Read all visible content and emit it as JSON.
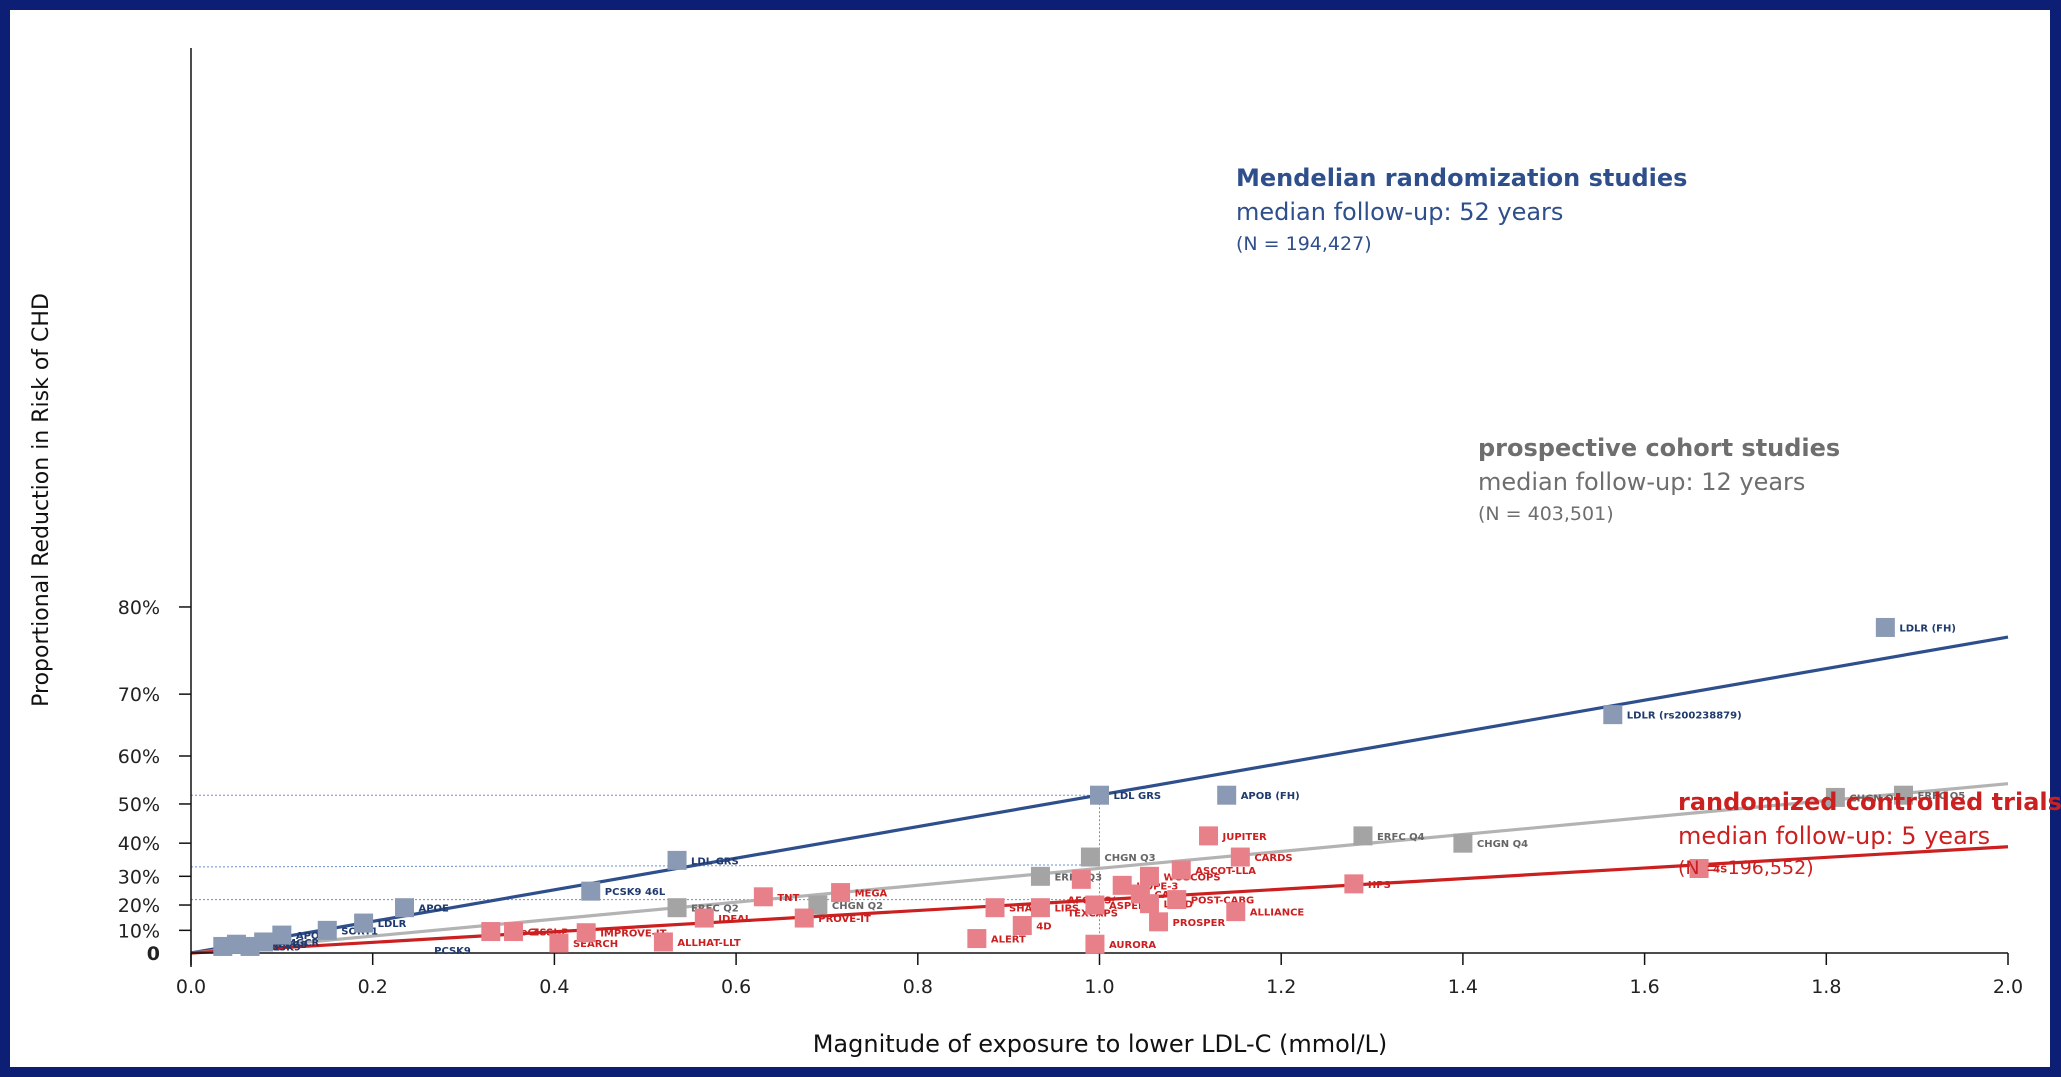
{
  "chart_data": {
    "type": "scatter",
    "title": "",
    "xlabel": "Magnitude of exposure to lower LDL-C (mmol/L)",
    "ylabel": "Proportional Reduction in Risk of CHD",
    "xlim": [
      0,
      2.0
    ],
    "x_ticks": [
      "0.0",
      "0.2",
      "0.4",
      "0.6",
      "0.8",
      "1.0",
      "1.2",
      "1.4",
      "1.6",
      "1.8",
      "2.0"
    ],
    "y_ticks": [
      {
        "value": 0,
        "label": "0"
      },
      {
        "value": 10,
        "label": "10%"
      },
      {
        "value": 20,
        "label": "20%"
      },
      {
        "value": 30,
        "label": "30%"
      },
      {
        "value": 40,
        "label": "40%"
      },
      {
        "value": 50,
        "label": "50%"
      },
      {
        "value": 60,
        "label": "60%"
      },
      {
        "value": 70,
        "label": "70%"
      },
      {
        "value": 80,
        "label": "80%"
      }
    ],
    "y_scale": "log-risk-ratio",
    "reference_lines": {
      "x": 1.0,
      "y": [
        52,
        33,
        22
      ]
    },
    "series": [
      {
        "key": "mr",
        "color": "#8a9ab4",
        "line_color": "#2e4f8c",
        "trend_end_y": 77,
        "annotation": {
          "head": "Mendelian randomization studies",
          "sub": "median follow-up: 52 years",
          "n": "(N = 194,427)",
          "color": "#2e4f8c"
        },
        "points": [
          {
            "x": 0.035,
            "y": 3,
            "label": "NPC1L1"
          },
          {
            "x": 0.05,
            "y": 4,
            "label": "ABCG5/G8"
          },
          {
            "x": 0.065,
            "y": 3,
            "label": "PCSK9"
          },
          {
            "x": 0.08,
            "y": 5,
            "label": "HMGCR"
          },
          {
            "x": 0.1,
            "y": 8,
            "label": "APOB"
          },
          {
            "x": 0.15,
            "y": 10,
            "label": "SORT1"
          },
          {
            "x": 0.19,
            "y": 13,
            "label": "LDLR"
          },
          {
            "x": 0.235,
            "y": 19,
            "label": "APOE"
          },
          {
            "x": 0.44,
            "y": 25,
            "label": "PCSK9 46L"
          },
          {
            "x": 0.535,
            "y": 35,
            "label": "LDL GRS"
          },
          {
            "x": 1.0,
            "y": 52,
            "label": "LDL GRS"
          },
          {
            "x": 1.14,
            "y": 52,
            "label": "APOB (FH)"
          },
          {
            "x": 1.565,
            "y": 67,
            "label": "LDLR (rs200238879)"
          },
          {
            "x": 1.865,
            "y": 78,
            "label": "LDLR (FH)"
          }
        ],
        "extra_labels": [
          {
            "x": 0.25,
            "y": 0.5,
            "label": "PCSK9"
          }
        ]
      },
      {
        "key": "cohort",
        "color": "#a4a4a4",
        "line_color": "#b3b3b3",
        "trend_end_y": 54.5,
        "annotation": {
          "head": "prospective cohort studies",
          "sub": "median follow-up: 12 years",
          "n": "(N = 403,501)",
          "color": "#6e6e6e"
        },
        "points": [
          {
            "x": 0.535,
            "y": 19,
            "label": "ERFC Q2"
          },
          {
            "x": 0.69,
            "y": 20,
            "label": "CHGN Q2"
          },
          {
            "x": 0.935,
            "y": 30,
            "label": "ERFC Q3"
          },
          {
            "x": 0.99,
            "y": 36,
            "label": "CHGN Q3"
          },
          {
            "x": 1.29,
            "y": 42,
            "label": "ERFC Q4"
          },
          {
            "x": 1.4,
            "y": 40,
            "label": "CHGN Q4"
          },
          {
            "x": 1.81,
            "y": 51.5,
            "label": "CHGN Q5"
          },
          {
            "x": 1.885,
            "y": 52,
            "label": "ERFC Q5"
          }
        ]
      },
      {
        "key": "rct",
        "color": "#e8808a",
        "line_color": "#cc1f1f",
        "trend_end_y": 39,
        "annotation": {
          "head": "randomized controlled trials",
          "sub": "median follow-up: 5 years",
          "n": "(N = 196,552)",
          "color": "#cc1f1f"
        },
        "points": [
          {
            "x": 0.33,
            "y": 9.5,
            "label": "A to Z"
          },
          {
            "x": 0.355,
            "y": 9.5,
            "label": "GISSI-P"
          },
          {
            "x": 0.405,
            "y": 4.5,
            "label": "SEARCH"
          },
          {
            "x": 0.435,
            "y": 9,
            "label": "IMPROVE-IT"
          },
          {
            "x": 0.52,
            "y": 5,
            "label": "ALLHAT-LLT"
          },
          {
            "x": 0.565,
            "y": 15,
            "label": "IDEAL"
          },
          {
            "x": 0.63,
            "y": 23,
            "label": "TNT"
          },
          {
            "x": 0.675,
            "y": 15,
            "label": "PROVE-IT"
          },
          {
            "x": 0.715,
            "y": 24.5,
            "label": "MEGA"
          },
          {
            "x": 0.865,
            "y": 6.5,
            "label": "ALERT"
          },
          {
            "x": 0.885,
            "y": 19,
            "label": "SHARP"
          },
          {
            "x": 0.915,
            "y": 12,
            "label": "4D"
          },
          {
            "x": 0.935,
            "y": 19,
            "label": "LIPS"
          },
          {
            "x": 0.98,
            "y": 29,
            "label": "AFCAPS/ TEXCAPS"
          },
          {
            "x": 0.995,
            "y": 4,
            "label": "AURORA"
          },
          {
            "x": 0.995,
            "y": 20,
            "label": "ASPEN"
          },
          {
            "x": 1.025,
            "y": 27,
            "label": "HOPE-3"
          },
          {
            "x": 1.045,
            "y": 24,
            "label": "CARE"
          },
          {
            "x": 1.055,
            "y": 30,
            "label": "WOSCOPS"
          },
          {
            "x": 1.055,
            "y": 20.5,
            "label": "LIPID"
          },
          {
            "x": 1.065,
            "y": 13.5,
            "label": "PROSPER"
          },
          {
            "x": 1.085,
            "y": 22,
            "label": "POST-CABG"
          },
          {
            "x": 1.09,
            "y": 32,
            "label": "ASCOT-LLA"
          },
          {
            "x": 1.12,
            "y": 42,
            "label": "JUPITER"
          },
          {
            "x": 1.15,
            "y": 17.5,
            "label": "ALLIANCE"
          },
          {
            "x": 1.155,
            "y": 36,
            "label": "CARDS"
          },
          {
            "x": 1.28,
            "y": 27.5,
            "label": "HPS"
          },
          {
            "x": 1.66,
            "y": 32.5,
            "label": "4S"
          }
        ]
      }
    ]
  }
}
